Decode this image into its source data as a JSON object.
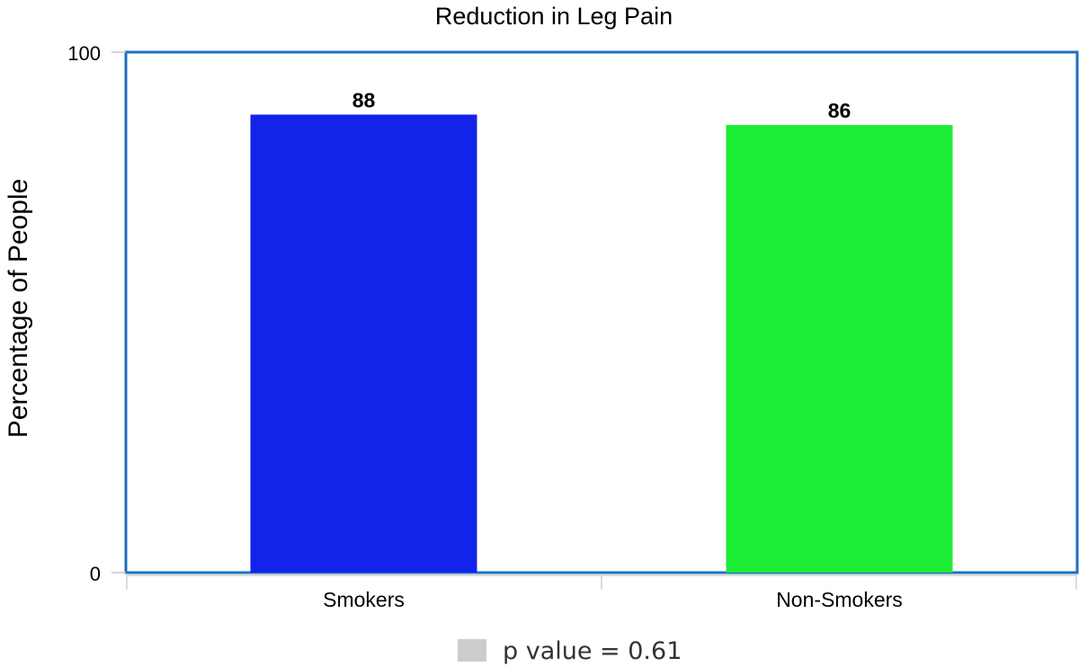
{
  "chart_data": {
    "type": "bar",
    "title": "Reduction in Leg Pain",
    "xlabel": "",
    "ylabel": "Percentage of People",
    "ylim": [
      0,
      100
    ],
    "yticks": [
      "0",
      "100"
    ],
    "categories": [
      "Smokers",
      "Non-Smokers"
    ],
    "values": [
      88,
      86
    ],
    "data_labels": [
      "88",
      "86"
    ],
    "colors": [
      "#1423ea",
      "#1ded36"
    ],
    "frame_color": "#1f6fc1",
    "grid": false,
    "legend": {
      "placement": "bottom-center",
      "label": "p value = 0.61",
      "swatch_color": "#cccccc"
    }
  }
}
